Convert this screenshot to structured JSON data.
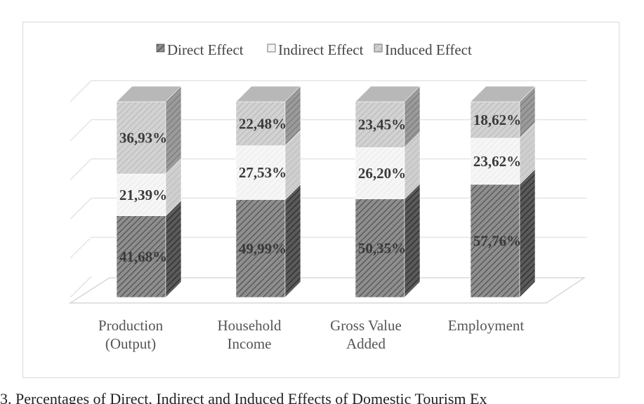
{
  "caption": "3. Percentages of Direct, Indirect and Induced Effects of Domestic Tourism Ex",
  "chart_data": {
    "type": "bar",
    "stacked": true,
    "three_d": true,
    "legend_position": "top",
    "grid": true,
    "categories": [
      [
        "Production",
        "(Output)"
      ],
      [
        "Household",
        "Income"
      ],
      [
        "Gross Value",
        "Added"
      ],
      [
        "Employment"
      ]
    ],
    "series": [
      {
        "name": "Direct Effect",
        "values": [
          41.68,
          49.99,
          50.35,
          57.76
        ],
        "labels": [
          "41,68%",
          "49,99%",
          "50,35%",
          "57,76%"
        ],
        "color": "#8a8a8a"
      },
      {
        "name": "Indirect Effect",
        "values": [
          21.39,
          27.53,
          26.2,
          23.62
        ],
        "labels": [
          "21,39%",
          "27,53%",
          "26,20%",
          "23,62%"
        ],
        "color": "#f2f2f2"
      },
      {
        "name": "Induced Effect",
        "values": [
          36.93,
          22.48,
          23.45,
          18.62
        ],
        "labels": [
          "36,93%",
          "22,48%",
          "23,45%",
          "18,62%"
        ],
        "color": "#c8c8c8"
      }
    ],
    "ylim": [
      0,
      100
    ]
  }
}
